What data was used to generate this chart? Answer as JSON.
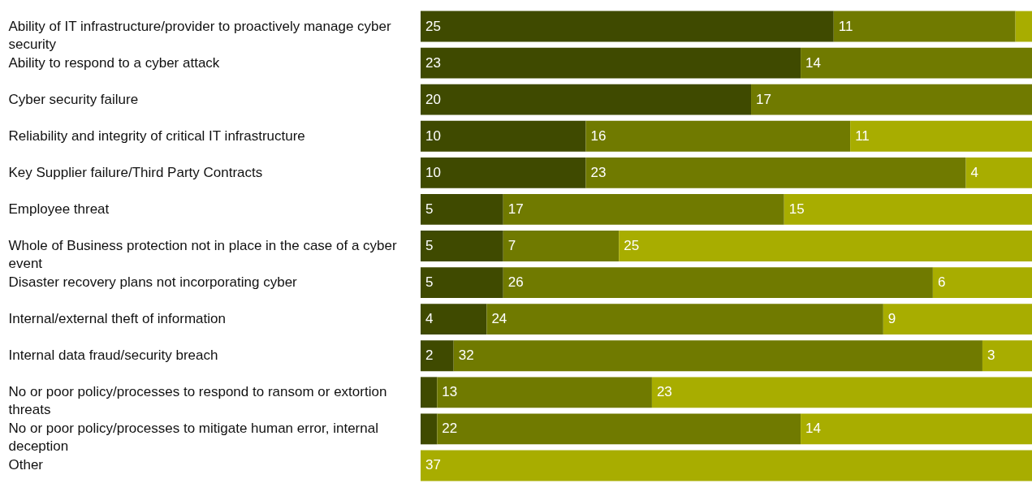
{
  "chart_data": {
    "type": "bar",
    "orientation": "horizontal",
    "stacked": true,
    "tick_labels": "y",
    "categories": [
      "Ability of IT infrastructure/provider to proactively manage cyber security",
      "Ability to respond to a cyber attack",
      "Cyber security failure",
      "Reliability and integrity of critical IT infrastructure",
      "Key Supplier failure/Third Party Contracts",
      "Employee threat",
      "Whole of Business protection not in place in the case of a cyber event",
      "Disaster recovery plans not incorporating cyber",
      "Internal/external theft of information",
      "Internal data fraud/security breach",
      "No or poor policy/processes to respond to ransom or extortion threats",
      "No or poor policy/processes to mitigate human error, internal deception",
      "Other"
    ],
    "series": [
      {
        "color": "#3f4a00",
        "values": [
          25,
          23,
          20,
          10,
          10,
          5,
          5,
          5,
          4,
          2,
          1,
          1,
          0
        ],
        "value_labels": [
          "25",
          "23",
          "20",
          "10",
          "10",
          "5",
          "5",
          "5",
          "4",
          "2",
          null,
          null,
          null
        ]
      },
      {
        "color": "#707a00",
        "values": [
          11,
          14,
          17,
          16,
          23,
          17,
          7,
          26,
          24,
          32,
          13,
          22,
          0
        ],
        "value_labels": [
          "11",
          "14",
          "17",
          "16",
          "23",
          "17",
          "7",
          "26",
          "24",
          "32",
          "13",
          "22",
          null
        ]
      },
      {
        "color": "#a8ad00",
        "values": [
          1,
          0,
          0,
          11,
          4,
          15,
          25,
          6,
          9,
          3,
          23,
          14,
          37
        ],
        "value_labels": [
          null,
          null,
          null,
          "11",
          "4",
          "15",
          "25",
          "6",
          "9",
          "3",
          "23",
          "14",
          "37"
        ]
      }
    ]
  }
}
